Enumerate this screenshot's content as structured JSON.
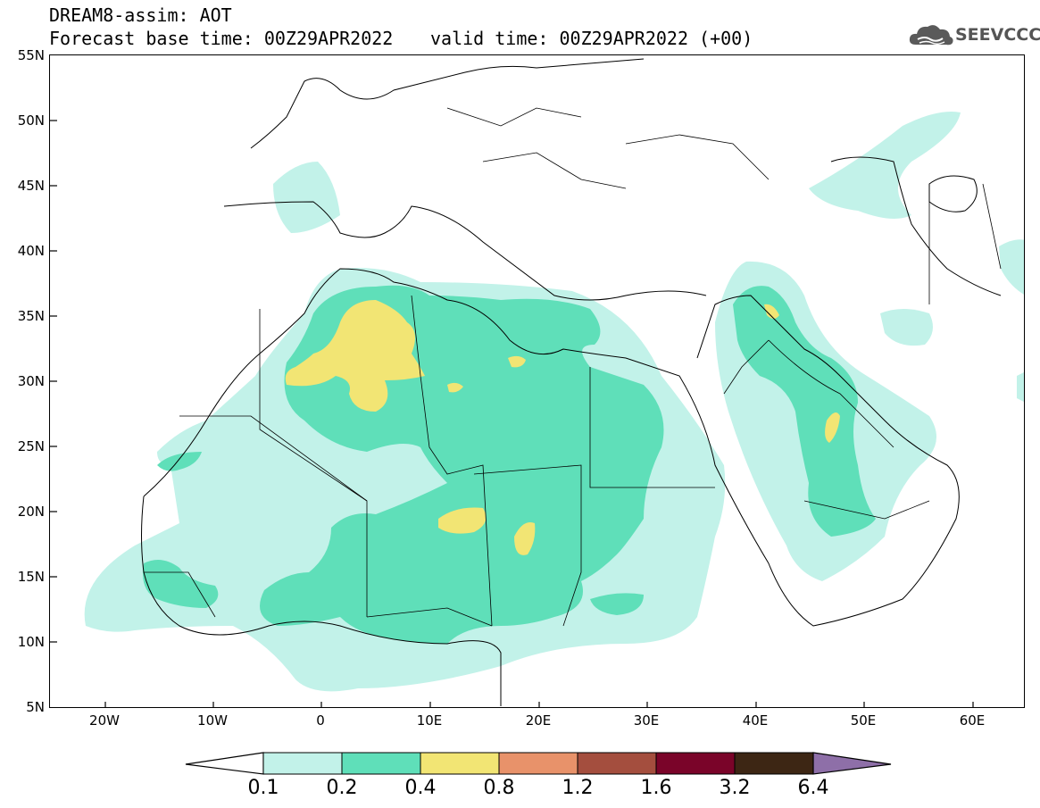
{
  "title": {
    "line1": "DREAM8-assim: AOT",
    "line2": "Forecast base time: 00Z29APR2022",
    "valid": "valid time: 00Z29APR2022 (+00)"
  },
  "logo": {
    "text": "SEEVCCC",
    "icon": "cloud-icon"
  },
  "map": {
    "lon_range": [
      -25,
      65
    ],
    "lat_range": [
      5,
      55
    ],
    "region": "North Africa, Europe and Middle East",
    "y_ticks": [
      "55N",
      "50N",
      "45N",
      "40N",
      "35N",
      "30N",
      "25N",
      "20N",
      "15N",
      "10N",
      "5N"
    ],
    "x_ticks": [
      "20W",
      "10W",
      "0",
      "10E",
      "20E",
      "30E",
      "40E",
      "50E",
      "60E"
    ],
    "colors": {
      "c01": "#c2f2e9",
      "c02": "#5fdfb9",
      "c04": "#f2e574",
      "c08": "#e8926a",
      "c12": "#a44e3e",
      "c16": "#7a0429",
      "c32": "#3d2614",
      "c64": "#8e6fa8"
    }
  },
  "colorbar": {
    "levels": [
      "0.1",
      "0.2",
      "0.4",
      "0.8",
      "1.2",
      "1.6",
      "3.2",
      "6.4"
    ],
    "colors": [
      "#c2f2e9",
      "#5fdfb9",
      "#f2e574",
      "#e8926a",
      "#a44e3e",
      "#7a0429",
      "#3d2614"
    ],
    "low_color": "#ffffff",
    "high_color": "#8e6fa8"
  }
}
